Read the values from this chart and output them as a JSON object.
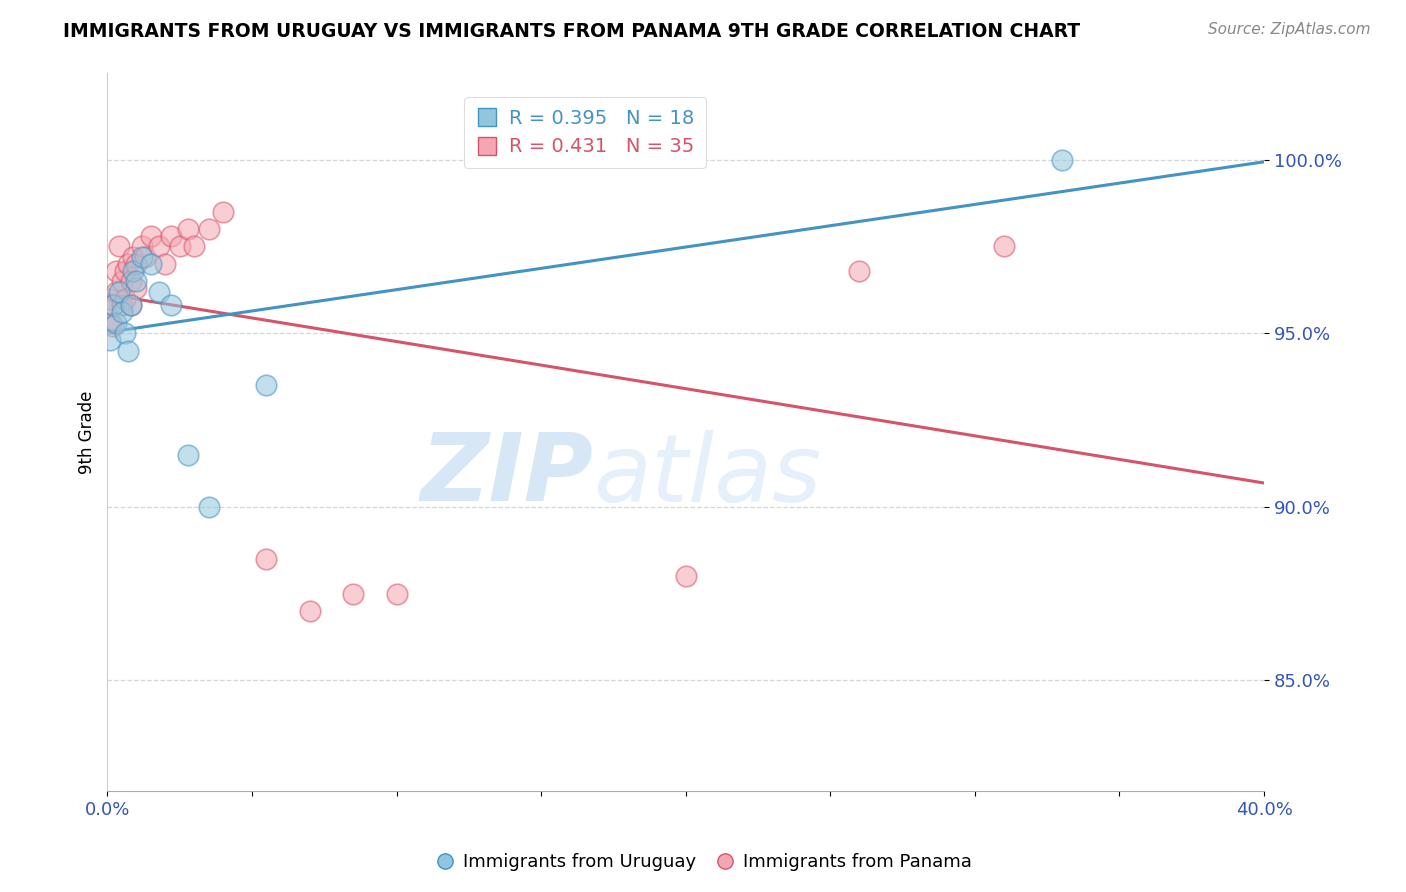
{
  "title": "IMMIGRANTS FROM URUGUAY VS IMMIGRANTS FROM PANAMA 9TH GRADE CORRELATION CHART",
  "source_text": "Source: ZipAtlas.com",
  "ylabel": "9th Grade",
  "legend_labels": [
    "Immigrants from Uruguay",
    "Immigrants from Panama"
  ],
  "r_uruguay": 0.395,
  "n_uruguay": 18,
  "r_panama": 0.431,
  "n_panama": 35,
  "color_uruguay": "#92c5de",
  "color_panama": "#f4a7b2",
  "trendline_color_uruguay": "#4393c3",
  "trendline_color_panama": "#d6546a",
  "xmin": 0.0,
  "xmax": 0.4,
  "ymin": 0.818,
  "ymax": 1.025,
  "yticks": [
    0.85,
    0.9,
    0.95,
    1.0
  ],
  "xticks": [
    0.0,
    0.05,
    0.1,
    0.15,
    0.2,
    0.25,
    0.3,
    0.35,
    0.4
  ],
  "watermark_zip": "ZIP",
  "watermark_atlas": "atlas",
  "uruguay_x": [
    0.001,
    0.002,
    0.003,
    0.004,
    0.005,
    0.006,
    0.007,
    0.008,
    0.009,
    0.01,
    0.012,
    0.015,
    0.018,
    0.022,
    0.028,
    0.035,
    0.055,
    0.33
  ],
  "uruguay_y": [
    0.948,
    0.958,
    0.953,
    0.962,
    0.956,
    0.95,
    0.945,
    0.958,
    0.968,
    0.965,
    0.972,
    0.97,
    0.962,
    0.958,
    0.915,
    0.9,
    0.935,
    1.0
  ],
  "panama_x": [
    0.001,
    0.001,
    0.002,
    0.002,
    0.003,
    0.003,
    0.004,
    0.005,
    0.005,
    0.006,
    0.006,
    0.007,
    0.008,
    0.008,
    0.009,
    0.01,
    0.01,
    0.012,
    0.013,
    0.015,
    0.018,
    0.02,
    0.022,
    0.025,
    0.028,
    0.03,
    0.035,
    0.04,
    0.055,
    0.07,
    0.085,
    0.1,
    0.2,
    0.26,
    0.31
  ],
  "panama_y": [
    0.953,
    0.96,
    0.958,
    0.952,
    0.962,
    0.968,
    0.975,
    0.958,
    0.965,
    0.96,
    0.968,
    0.97,
    0.958,
    0.965,
    0.972,
    0.963,
    0.97,
    0.975,
    0.972,
    0.978,
    0.975,
    0.97,
    0.978,
    0.975,
    0.98,
    0.975,
    0.98,
    0.985,
    0.885,
    0.87,
    0.875,
    0.875,
    0.88,
    0.968,
    0.975
  ]
}
